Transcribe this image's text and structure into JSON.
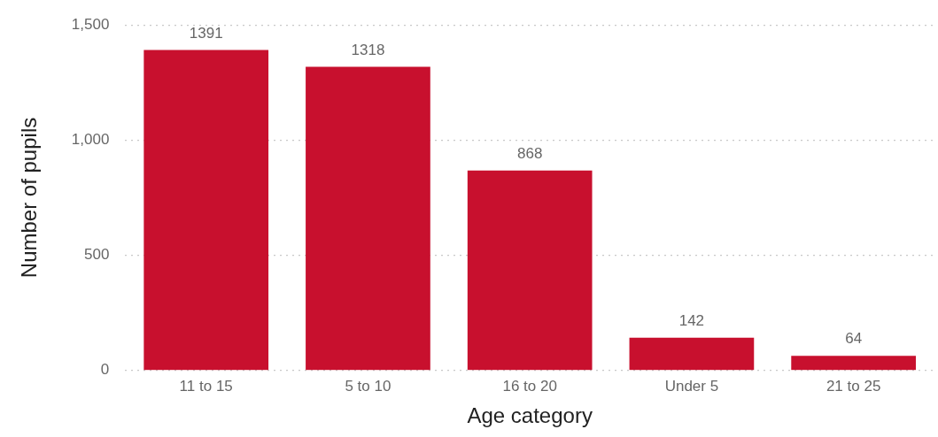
{
  "chart_data": {
    "type": "bar",
    "xlabel": "Age category",
    "ylabel": "Number of pupils",
    "categories": [
      "11 to 15",
      "5 to 10",
      "16 to 20",
      "Under 5",
      "21 to 25"
    ],
    "values": [
      1391,
      1318,
      868,
      142,
      64
    ],
    "color": "#c8102e",
    "ylim": [
      0,
      1500
    ],
    "yticks": [
      0,
      500,
      {
        "value": 1000,
        "label": "1,000"
      },
      {
        "value": 1500,
        "label": "1,500"
      }
    ],
    "grid": "y",
    "legend": false,
    "data_labels": true
  }
}
